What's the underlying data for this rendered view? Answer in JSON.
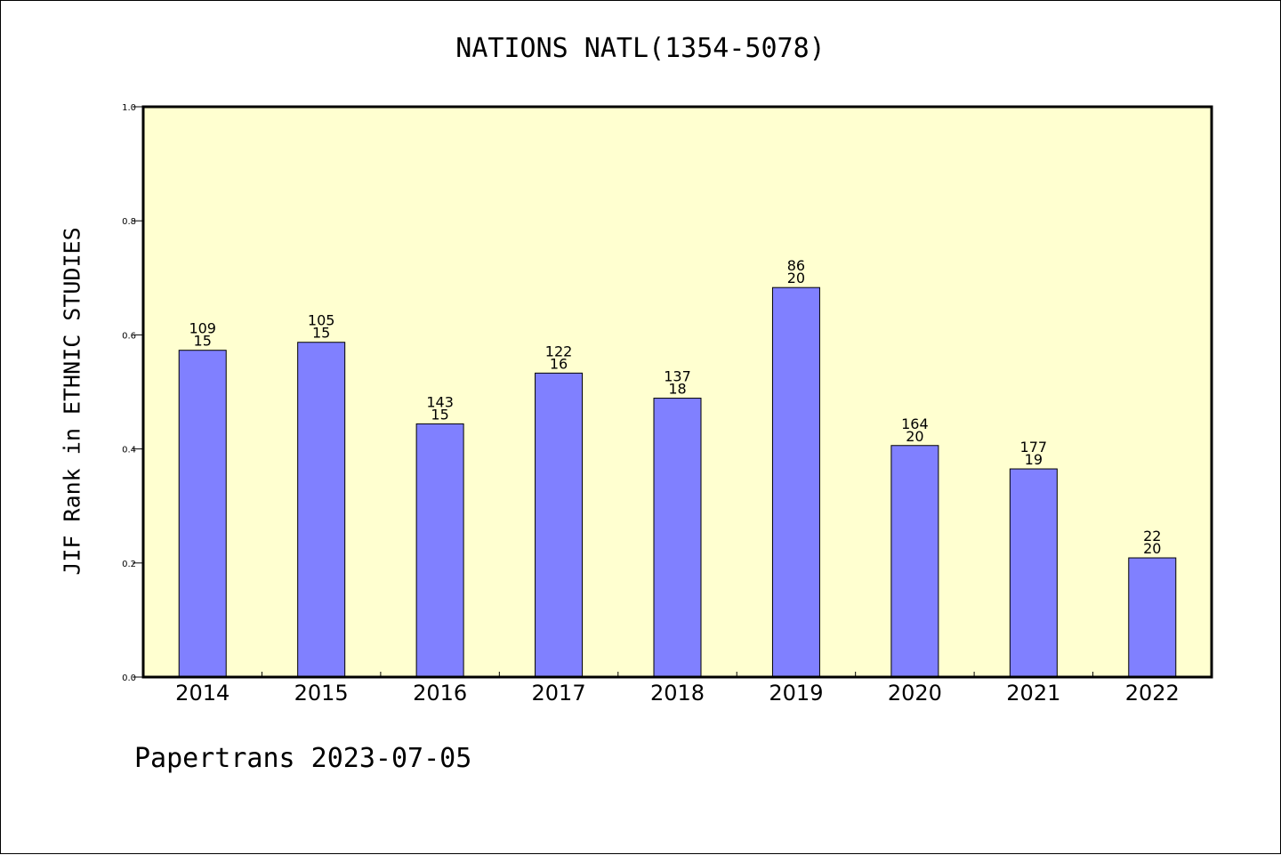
{
  "chart_data": {
    "type": "bar",
    "title": "NATIONS NATL(1354-5078)",
    "ylabel": "JIF Rank in ETHNIC STUDIES",
    "xlabel": "",
    "ylim": [
      0.0,
      1.0
    ],
    "yticks": [
      "0.0",
      "0.2",
      "0.4",
      "0.6",
      "0.8",
      "1.0"
    ],
    "categories": [
      "2014",
      "2015",
      "2016",
      "2017",
      "2018",
      "2019",
      "2020",
      "2021",
      "2022"
    ],
    "values": [
      0.573,
      0.587,
      0.444,
      0.533,
      0.489,
      0.683,
      0.406,
      0.365,
      0.209
    ],
    "bar_labels_top": [
      "109",
      "105",
      "143",
      "122",
      "137",
      "86",
      "164",
      "177",
      "22"
    ],
    "bar_labels_bottom": [
      "15",
      "15",
      "15",
      "16",
      "18",
      "20",
      "20",
      "19",
      "20"
    ],
    "bar_color": "#8080ff",
    "plot_background": "#ffffd0",
    "grid": false
  },
  "footer": "Papertrans 2023-07-05"
}
